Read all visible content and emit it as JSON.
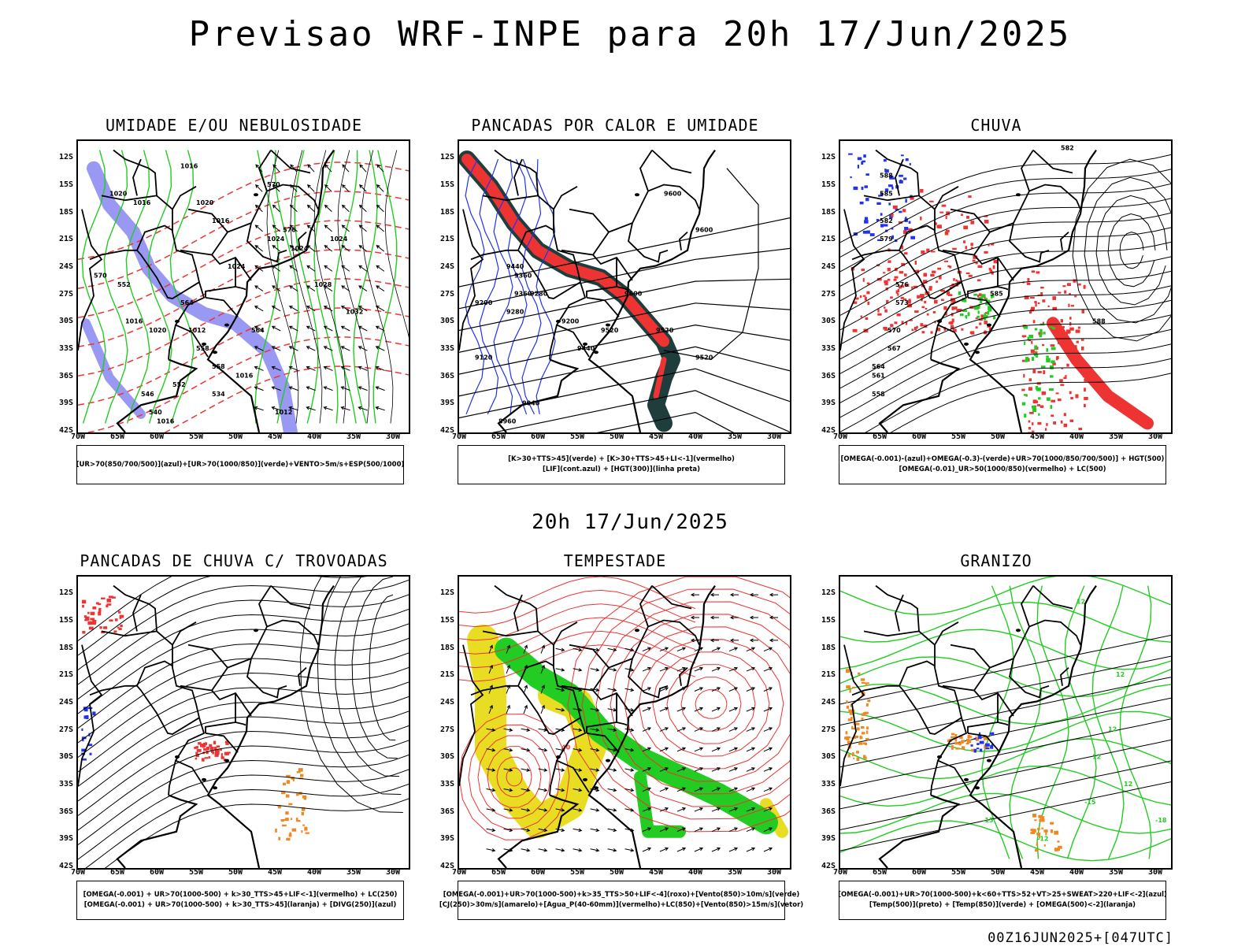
{
  "title": "Previsao WRF-INPE  para 20h 17/Jun/2025",
  "middle_label": "20h 17/Jun/2025",
  "footer_code": "00Z16JUN2025+[047UTC]",
  "axes": {
    "lat": [
      "12S",
      "15S",
      "18S",
      "21S",
      "24S",
      "27S",
      "30S",
      "33S",
      "36S",
      "39S",
      "42S"
    ],
    "lon": [
      "70W",
      "65W",
      "60W",
      "55W",
      "50W",
      "45W",
      "40W",
      "35W",
      "30W"
    ]
  },
  "colors": {
    "blue_humidity": "#7f7ff0",
    "green": "#22cc22",
    "red": "#ee3333",
    "dark_teal": "#1f3d3d",
    "blue": "#2233ee",
    "yellow": "#e8dd22",
    "orange": "#ee8822"
  },
  "panels": [
    {
      "title": "UMIDADE E/OU NEBULOSIDADE",
      "legend": [
        "[UR>70(850/700/500)](azul)+[UR>70(1000/850)](verde)+VENTO>5m/s+ESP(500/1000)"
      ],
      "contour_labels": [
        "1016",
        "1020",
        "1016",
        "1024",
        "1024",
        "1024",
        "1028",
        "1032",
        "1024",
        "1020",
        "1016",
        "1012",
        "1016",
        "1020",
        "1016",
        "1012",
        "1016",
        "570",
        "576",
        "564",
        "558",
        "552",
        "546",
        "540",
        "534",
        "552",
        "570",
        "564",
        "558"
      ]
    },
    {
      "title": "PANCADAS POR CALOR E UMIDADE",
      "legend": [
        "[K>30+TTS>45](verde) + [K>30+TTS>45+LI<-1](vermelho)",
        "[LIF](cont.azul) + [HGT(300)](linha preta)"
      ],
      "contour_labels": [
        "9600",
        "9600",
        "9600",
        "9520",
        "9520",
        "9440",
        "9360",
        "9280",
        "9200",
        "9120",
        "9040",
        "8960",
        "9440",
        "9360",
        "9280",
        "9200",
        "9520"
      ]
    },
    {
      "title": "CHUVA",
      "legend": [
        "[OMEGA(-0.001)-(azul)+OMEGA(-0.3)-(verde)+UR>70(1000/850/700/500)] + HGT(500)",
        "[OMEGA(-0.01)_UR>50(1000/850)(vermelho) + LC(500)"
      ],
      "contour_labels": [
        "588",
        "585",
        "582",
        "579",
        "576",
        "573",
        "570",
        "567",
        "564",
        "561",
        "558",
        "588",
        "585",
        "582"
      ]
    },
    {
      "title": "PANCADAS DE CHUVA C/ TROVOADAS",
      "legend": [
        "[OMEGA(-0.001) + UR>70(1000-500) + k>30_TTS>45+LIF<-1](vermelho) + LC(250)",
        "[OMEGA(-0.001) + UR>70(1000-500) + k>30_TTS>45](laranja) + [DIVG(250)](azul)"
      ],
      "contour_labels": []
    },
    {
      "title": "TEMPESTADE",
      "legend": [
        "[OMEGA(-0.001)+UR>70(1000-500)+k>35_TTS>50+LIF<-4](roxo)+[Vento(850)>10m/s](verde)",
        "[CJ(250)>30m/s](amarelo)+[Agua_P(40-60mm)](vermelho)+LC(850)+[Vento(850)>15m/s](vetor)"
      ],
      "contour_labels": [
        "40"
      ]
    },
    {
      "title": "GRANIZO",
      "legend": [
        "[OMEGA(-0.001)+UR>70(1000-500)+k<60+TTS>52+VT>25+SWEAT>220+LIF<-2](azul)",
        "[Temp(500)](preto) + [Temp(850)](verde) + [OMEGA(500)<-2](laranja)"
      ],
      "contour_labels": [
        "12",
        "12",
        "12",
        "12",
        "12",
        "-18",
        "-15",
        "-12",
        "-15"
      ]
    }
  ]
}
